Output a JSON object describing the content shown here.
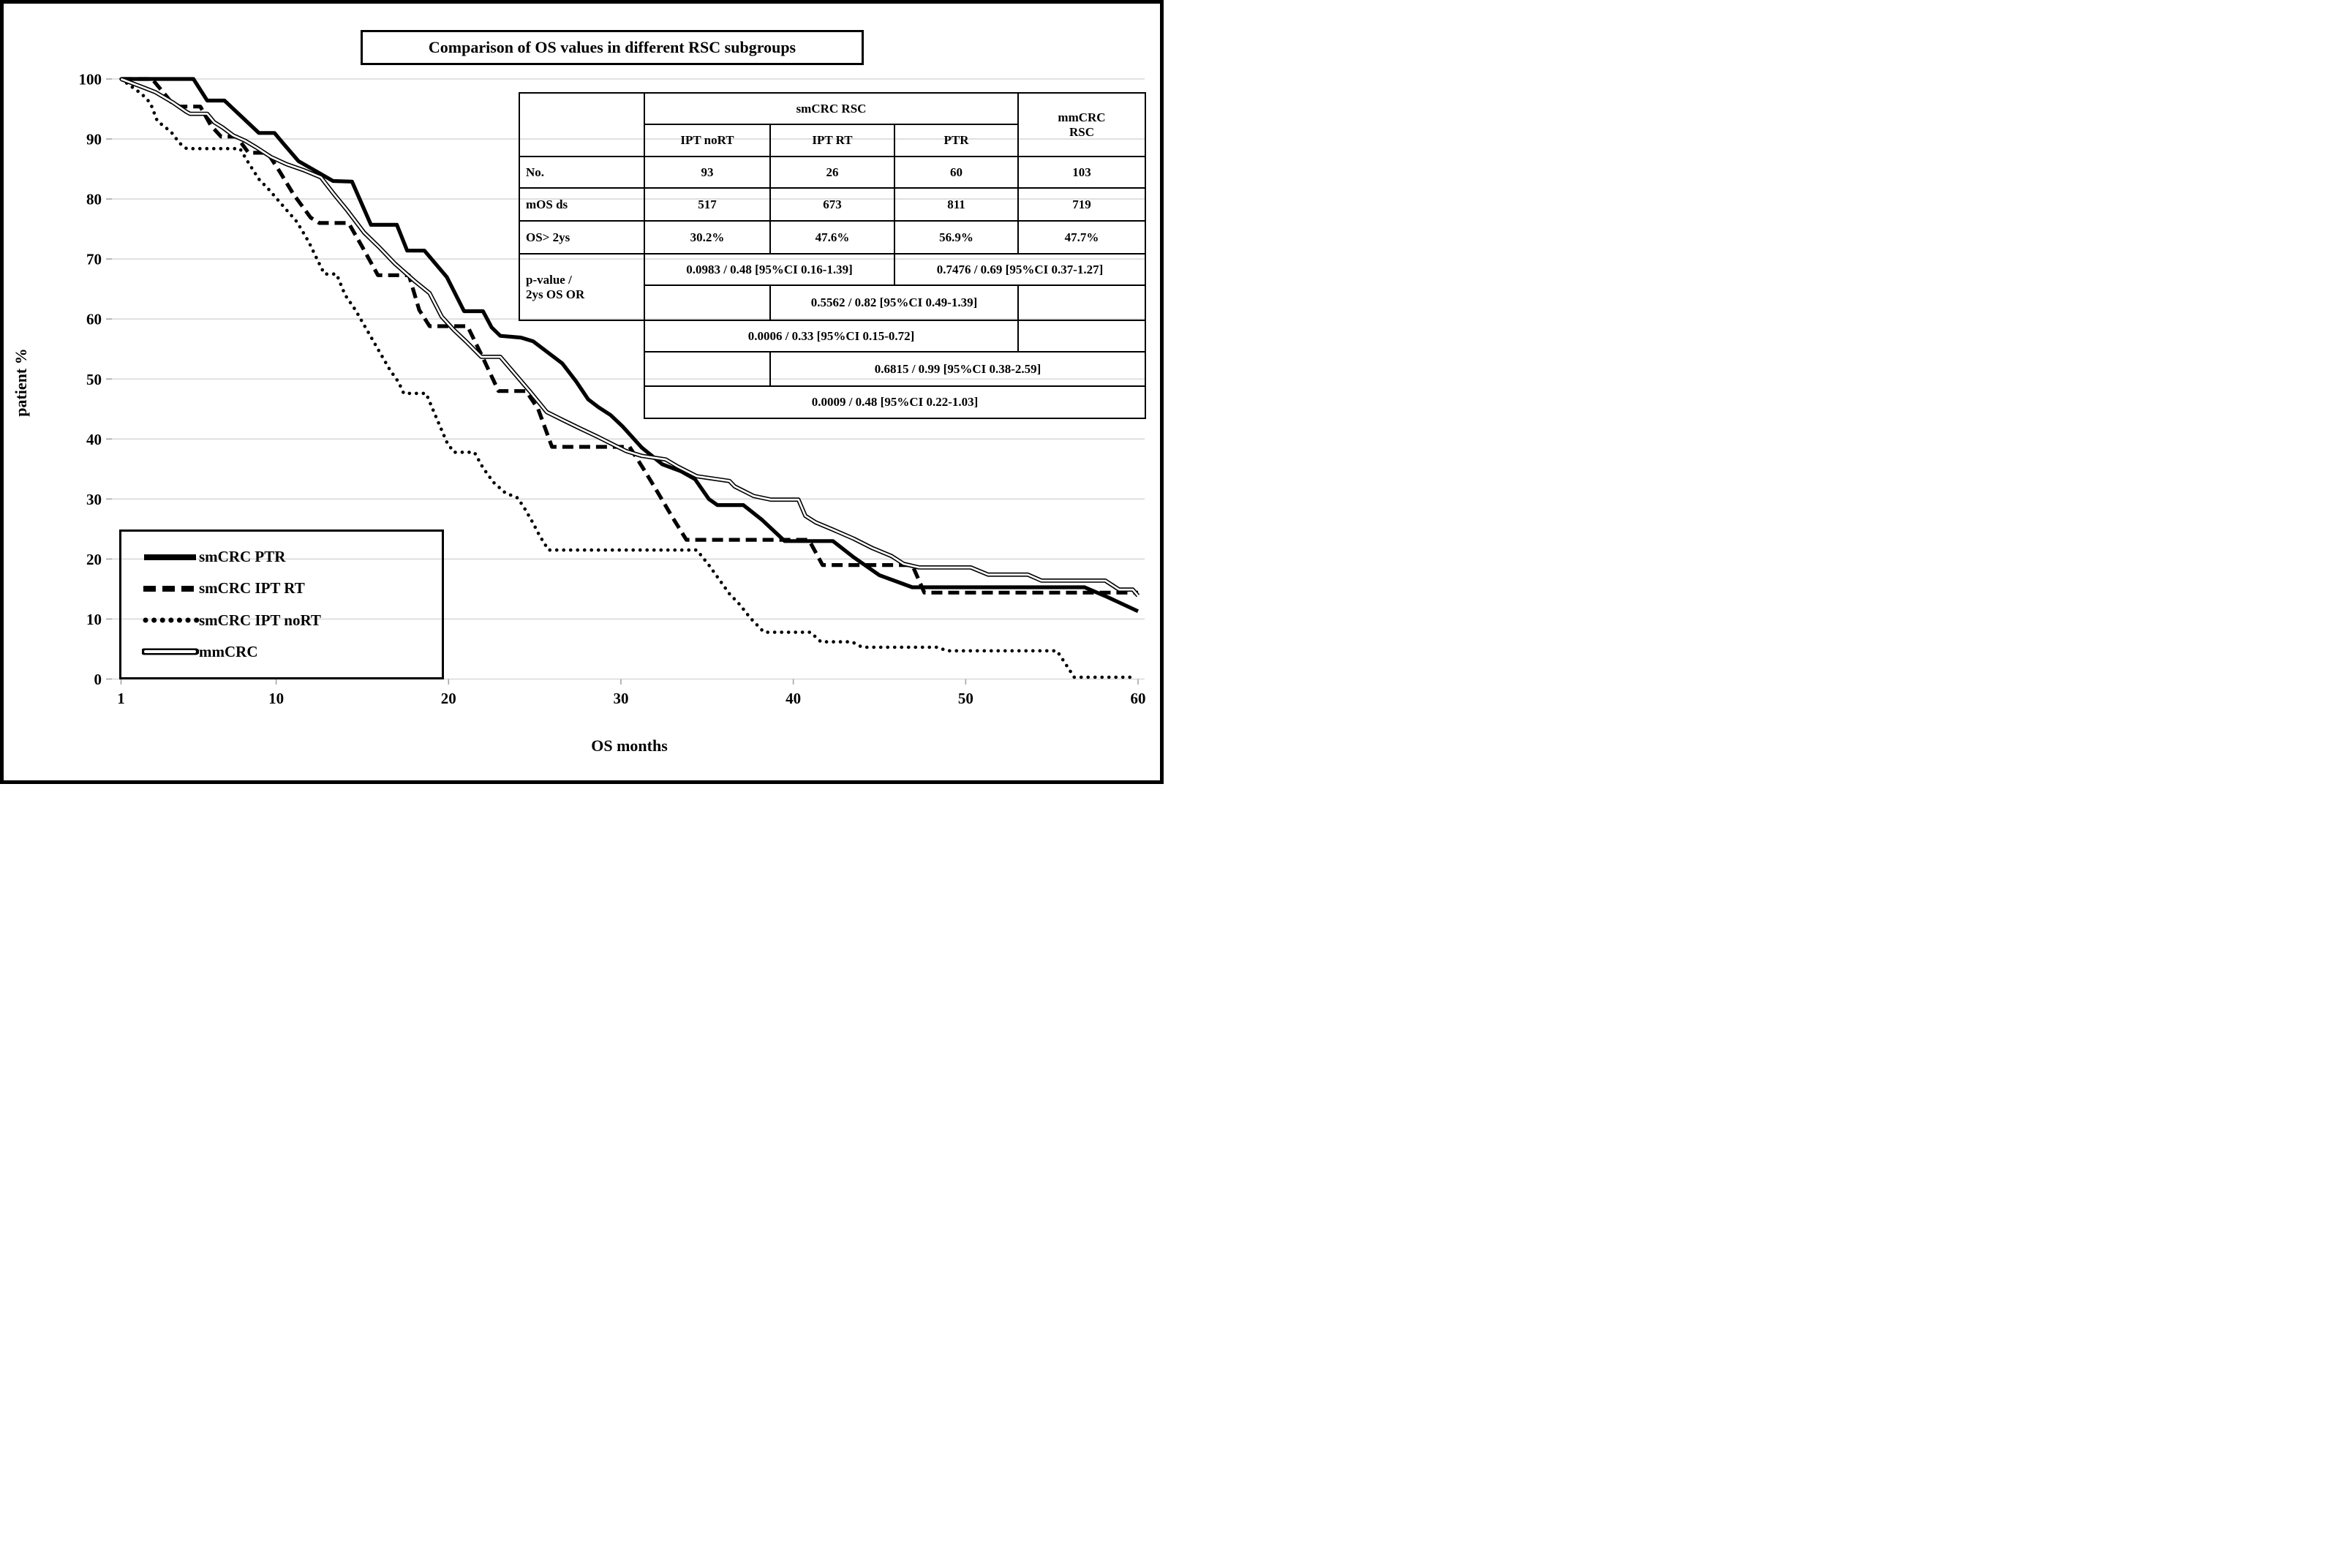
{
  "title": "Comparison of OS values in different RSC subgroups",
  "axes": {
    "x_label": "OS months",
    "y_label": "patient %",
    "x_ticks": [
      1,
      10,
      20,
      30,
      40,
      50,
      60
    ],
    "y_ticks": [
      0,
      10,
      20,
      30,
      40,
      50,
      60,
      70,
      80,
      90,
      100
    ],
    "x_range": [
      1,
      60
    ],
    "y_range": [
      0,
      100
    ],
    "grid_color": "#d9d9d9",
    "axis_color": "#a6a6a6"
  },
  "legend": {
    "items": [
      {
        "label": "smCRC PTR",
        "style": "solid"
      },
      {
        "label": "smCRC IPT RT",
        "style": "dashed"
      },
      {
        "label": "smCRC IPT noRT",
        "style": "dotted"
      },
      {
        "label": "mmCRC",
        "style": "double"
      }
    ]
  },
  "table": {
    "group_header": "smCRC RSC",
    "group2_header": "mmCRC\nRSC",
    "subheaders": [
      "IPT noRT",
      "IPT RT",
      "PTR"
    ],
    "rows": [
      {
        "label": "No.",
        "values": [
          "93",
          "26",
          "60",
          "103"
        ]
      },
      {
        "label": "mOS ds",
        "values": [
          "517",
          "673",
          "811",
          "719"
        ]
      },
      {
        "label": "OS> 2ys",
        "values": [
          "30.2%",
          "47.6%",
          "56.9%",
          "47.7%"
        ]
      }
    ],
    "pvalue_row_label": "p-value /\n2ys OS OR",
    "comparisons": {
      "iptnort_iptrt": "0.0983 / 0.48 [95%CI 0.16-1.39]",
      "ptr_mmcrc": "0.7476 / 0.69 [95%CI 0.37-1.27]",
      "iptrt_ptr": "0.5562 / 0.82 [95%CI 0.49-1.39]",
      "iptnort_ptr": "0.0006 / 0.33 [95%CI 0.15-0.72]",
      "iptrt_mmcrc": "0.6815 / 0.99 [95%CI 0.38-2.59]",
      "iptnort_mmcrc": "0.0009 / 0.48 [95%CI 0.22-1.03]"
    }
  },
  "chart_data": {
    "type": "line",
    "title": "Comparison of OS values in different RSC subgroups",
    "xlabel": "OS months",
    "ylabel": "patient %",
    "xlim": [
      1,
      60
    ],
    "ylim": [
      0,
      100
    ],
    "grid": "horizontal",
    "legend_position": "lower-left",
    "series": [
      {
        "name": "smCRC PTR",
        "style": "solid",
        "points": [
          [
            1,
            100
          ],
          [
            5.2,
            100
          ],
          [
            6,
            96.4
          ],
          [
            7,
            96.4
          ],
          [
            9,
            91
          ],
          [
            9.9,
            91
          ],
          [
            10.4,
            89.3
          ],
          [
            11.3,
            86.3
          ],
          [
            13.3,
            83
          ],
          [
            14.4,
            82.9
          ],
          [
            15.5,
            75.7
          ],
          [
            17,
            75.7
          ],
          [
            17.6,
            71.4
          ],
          [
            18.6,
            71.4
          ],
          [
            19.9,
            67
          ],
          [
            20.9,
            61.3
          ],
          [
            22,
            61.3
          ],
          [
            22.5,
            58.6
          ],
          [
            23,
            57.2
          ],
          [
            24.2,
            56.9
          ],
          [
            24.9,
            56.3
          ],
          [
            26.6,
            52.6
          ],
          [
            27.4,
            49.6
          ],
          [
            28.1,
            46.6
          ],
          [
            28.7,
            45.3
          ],
          [
            29.4,
            44
          ],
          [
            30.1,
            42.1
          ],
          [
            31.2,
            38.6
          ],
          [
            32.4,
            35.8
          ],
          [
            33.5,
            34.6
          ],
          [
            34.3,
            33.3
          ],
          [
            35.1,
            30
          ],
          [
            35.6,
            29
          ],
          [
            37.1,
            29
          ],
          [
            38.2,
            26.5
          ],
          [
            39.5,
            23
          ],
          [
            42.3,
            23
          ],
          [
            43.5,
            20.3
          ],
          [
            45,
            17.3
          ],
          [
            46.9,
            15.3
          ],
          [
            56.9,
            15.3
          ],
          [
            58.2,
            13.7
          ],
          [
            60,
            11.3
          ]
        ]
      },
      {
        "name": "smCRC IPT RT",
        "style": "dashed",
        "points": [
          [
            1,
            100
          ],
          [
            2.8,
            100
          ],
          [
            3.5,
            97.6
          ],
          [
            3.9,
            96.2
          ],
          [
            4.4,
            95.4
          ],
          [
            5.6,
            95.4
          ],
          [
            6.2,
            92.3
          ],
          [
            6.8,
            90.4
          ],
          [
            7.7,
            90.4
          ],
          [
            8.4,
            87.7
          ],
          [
            9.5,
            87.7
          ],
          [
            10.2,
            84.6
          ],
          [
            11,
            80.8
          ],
          [
            12,
            76.9
          ],
          [
            12.5,
            76
          ],
          [
            14.2,
            76
          ],
          [
            15,
            72
          ],
          [
            15.9,
            67.3
          ],
          [
            17.7,
            67.3
          ],
          [
            18.3,
            61.5
          ],
          [
            18.9,
            58.8
          ],
          [
            21.1,
            58.8
          ],
          [
            22,
            53.5
          ],
          [
            22.9,
            48
          ],
          [
            24.5,
            48
          ],
          [
            25.2,
            45
          ],
          [
            26,
            38.7
          ],
          [
            30.5,
            38.7
          ],
          [
            31.4,
            34.6
          ],
          [
            32.2,
            30.8
          ],
          [
            33,
            26.9
          ],
          [
            33.8,
            23.2
          ],
          [
            40.9,
            23.2
          ],
          [
            41.7,
            19
          ],
          [
            46.9,
            19
          ],
          [
            47.6,
            14.4
          ],
          [
            60,
            14.4
          ]
        ]
      },
      {
        "name": "smCRC IPT noRT",
        "style": "dotted",
        "points": [
          [
            1,
            100
          ],
          [
            2.2,
            97.5
          ],
          [
            2.7,
            96
          ],
          [
            3.1,
            93
          ],
          [
            3.9,
            91.2
          ],
          [
            4.4,
            89.3
          ],
          [
            4.8,
            88.4
          ],
          [
            7.9,
            88.4
          ],
          [
            8.4,
            86
          ],
          [
            9,
            83.3
          ],
          [
            9.6,
            81.5
          ],
          [
            10.5,
            78.5
          ],
          [
            11.2,
            76.2
          ],
          [
            11.9,
            72.8
          ],
          [
            12.4,
            69.8
          ],
          [
            12.8,
            67.5
          ],
          [
            13.5,
            67.5
          ],
          [
            14,
            64
          ],
          [
            14.6,
            61.5
          ],
          [
            15.3,
            58
          ],
          [
            16,
            54.5
          ],
          [
            16.6,
            51.5
          ],
          [
            17.1,
            49.5
          ],
          [
            17.4,
            47.6
          ],
          [
            18.7,
            47.6
          ],
          [
            19.3,
            43.5
          ],
          [
            19.9,
            39.5
          ],
          [
            20.3,
            37.8
          ],
          [
            21.5,
            37.8
          ],
          [
            22,
            35.2
          ],
          [
            22.6,
            32.8
          ],
          [
            23.3,
            31
          ],
          [
            24,
            30.2
          ],
          [
            24.4,
            28.5
          ],
          [
            24.9,
            26
          ],
          [
            25.3,
            23.8
          ],
          [
            25.8,
            21.5
          ],
          [
            34.4,
            21.5
          ],
          [
            35.1,
            19
          ],
          [
            35.7,
            16.6
          ],
          [
            36.3,
            14.2
          ],
          [
            36.9,
            12.4
          ],
          [
            37.5,
            10.2
          ],
          [
            38.3,
            7.8
          ],
          [
            41,
            7.8
          ],
          [
            41.6,
            6.2
          ],
          [
            43.4,
            6.2
          ],
          [
            44,
            5.3
          ],
          [
            48.4,
            5.3
          ],
          [
            48.9,
            4.7
          ],
          [
            55.3,
            4.7
          ],
          [
            56.3,
            0.3
          ],
          [
            59.6,
            0.3
          ]
        ]
      },
      {
        "name": "mmCRC",
        "style": "double",
        "points": [
          [
            1,
            100
          ],
          [
            2.1,
            98.8
          ],
          [
            3,
            97.8
          ],
          [
            4,
            96.1
          ],
          [
            4.8,
            94.5
          ],
          [
            5,
            94.2
          ],
          [
            6,
            94.2
          ],
          [
            6.4,
            92.8
          ],
          [
            6.9,
            91.9
          ],
          [
            7.5,
            90.6
          ],
          [
            8.2,
            89.7
          ],
          [
            8.9,
            88.5
          ],
          [
            9.7,
            87
          ],
          [
            10.6,
            85.8
          ],
          [
            11.6,
            84.8
          ],
          [
            12.6,
            83.6
          ],
          [
            13.3,
            81
          ],
          [
            14.1,
            78.2
          ],
          [
            15.1,
            74.4
          ],
          [
            16,
            71.9
          ],
          [
            16.9,
            69.2
          ],
          [
            18,
            66.4
          ],
          [
            18.9,
            64.3
          ],
          [
            19.6,
            60.4
          ],
          [
            20.3,
            58.2
          ],
          [
            21,
            56.3
          ],
          [
            21.9,
            53.7
          ],
          [
            23,
            53.7
          ],
          [
            24.7,
            48
          ],
          [
            25.7,
            44.5
          ],
          [
            26.6,
            43.2
          ],
          [
            27.6,
            41.8
          ],
          [
            28.7,
            40.3
          ],
          [
            29.6,
            39
          ],
          [
            30.3,
            38
          ],
          [
            31.2,
            37.2
          ],
          [
            32.6,
            36.6
          ],
          [
            33.3,
            35.4
          ],
          [
            34.4,
            33.8
          ],
          [
            36.3,
            33
          ],
          [
            36.6,
            32.1
          ],
          [
            37.7,
            30.5
          ],
          [
            38.7,
            29.9
          ],
          [
            40.3,
            29.9
          ],
          [
            40.7,
            27.2
          ],
          [
            41.3,
            26.1
          ],
          [
            42.3,
            24.9
          ],
          [
            43.5,
            23.4
          ],
          [
            44.6,
            21.8
          ],
          [
            45.7,
            20.5
          ],
          [
            46.4,
            19.2
          ],
          [
            47.3,
            18.6
          ],
          [
            50.3,
            18.6
          ],
          [
            51.3,
            17.4
          ],
          [
            53.6,
            17.4
          ],
          [
            54.4,
            16.4
          ],
          [
            58.1,
            16.4
          ],
          [
            58.9,
            14.9
          ],
          [
            59.7,
            14.9
          ],
          [
            60,
            13.9
          ]
        ]
      }
    ]
  }
}
